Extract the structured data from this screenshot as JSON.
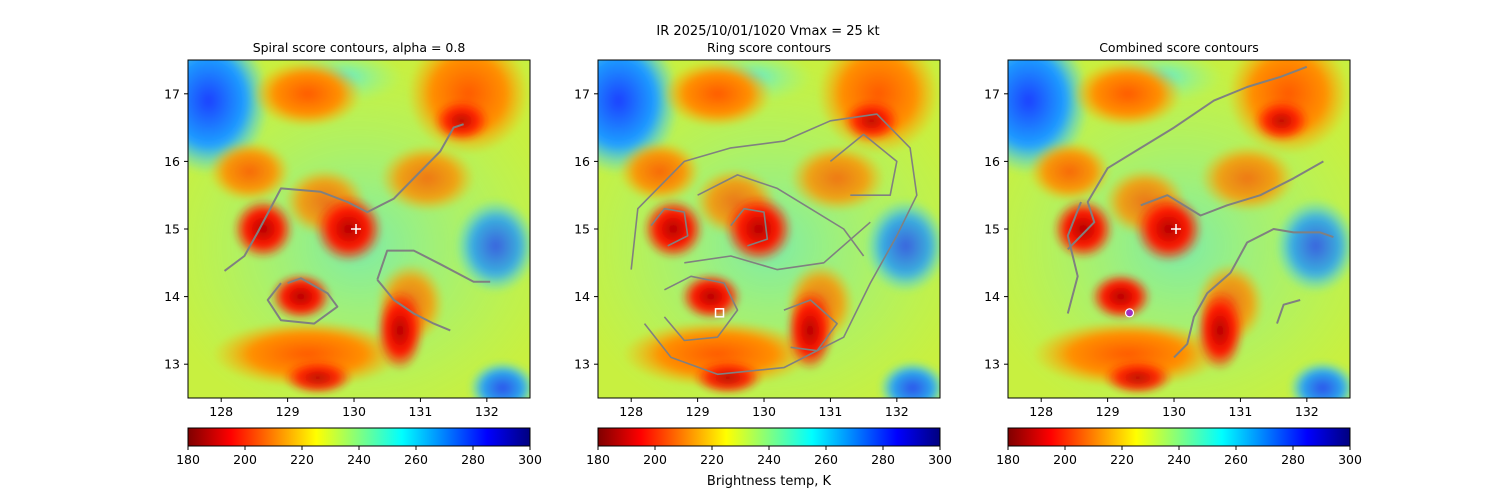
{
  "figure": {
    "suptitle_line": "IR  2025/10/01/1020    Vmax = 25 kt",
    "colorbar_label": "Brightness temp, K"
  },
  "colorscale": {
    "name": "jet_r",
    "range": [
      180,
      300
    ],
    "ticks": [
      180,
      200,
      220,
      240,
      260,
      280,
      300
    ],
    "stops": [
      "#7f0000",
      "#ff0000",
      "#ff8000",
      "#ffff00",
      "#80ff80",
      "#00ffff",
      "#0080ff",
      "#0000ff",
      "#00007f"
    ]
  },
  "contour_color": "#808080",
  "marker_color": "#ffffff",
  "chart_data": [
    {
      "type": "heatmap",
      "title": "Spiral score contours, alpha =  0.8",
      "xlim": [
        127.5,
        132.65
      ],
      "ylim": [
        12.5,
        17.5
      ],
      "xticks": [
        128,
        129,
        130,
        131,
        132
      ],
      "yticks": [
        13,
        14,
        15,
        16,
        17
      ],
      "contours": [
        [
          [
            128.05,
            14.38
          ],
          [
            128.35,
            14.6
          ],
          [
            128.55,
            14.95
          ],
          [
            128.9,
            15.6
          ],
          [
            129.5,
            15.55
          ],
          [
            129.9,
            15.4
          ],
          [
            130.2,
            15.25
          ],
          [
            130.6,
            15.45
          ],
          [
            131.0,
            15.85
          ],
          [
            131.3,
            16.15
          ],
          [
            131.5,
            16.5
          ],
          [
            131.65,
            16.55
          ]
        ],
        [
          [
            129.0,
            14.2
          ],
          [
            129.2,
            14.27
          ],
          [
            129.6,
            14.05
          ],
          [
            129.75,
            13.85
          ],
          [
            129.4,
            13.6
          ],
          [
            128.9,
            13.65
          ],
          [
            128.7,
            13.95
          ],
          [
            128.9,
            14.2
          ]
        ],
        [
          [
            130.35,
            14.25
          ],
          [
            130.5,
            14.68
          ],
          [
            130.9,
            14.68
          ],
          [
            131.3,
            14.48
          ],
          [
            131.8,
            14.22
          ],
          [
            132.05,
            14.22
          ]
        ],
        [
          [
            130.35,
            14.25
          ],
          [
            130.6,
            13.95
          ],
          [
            130.9,
            13.75
          ],
          [
            131.2,
            13.6
          ],
          [
            131.45,
            13.5
          ]
        ]
      ],
      "center_marker": {
        "x": 130.03,
        "y": 15.0,
        "symbol": "+"
      }
    },
    {
      "type": "heatmap",
      "title": "Ring score contours",
      "xlim": [
        127.5,
        132.65
      ],
      "ylim": [
        12.5,
        17.5
      ],
      "xticks": [
        128,
        129,
        130,
        131,
        132
      ],
      "yticks": [
        13,
        14,
        15,
        16,
        17
      ],
      "contours": [
        [
          [
            128.0,
            14.4
          ],
          [
            128.1,
            15.3
          ],
          [
            128.8,
            16.0
          ],
          [
            129.5,
            16.2
          ],
          [
            130.3,
            16.3
          ],
          [
            131.0,
            16.6
          ],
          [
            131.7,
            16.7
          ],
          [
            132.2,
            16.2
          ],
          [
            132.3,
            15.5
          ],
          [
            132.0,
            14.9
          ],
          [
            131.6,
            14.2
          ],
          [
            131.2,
            13.4
          ],
          [
            130.3,
            12.95
          ],
          [
            129.3,
            12.85
          ],
          [
            128.6,
            13.1
          ],
          [
            128.2,
            13.6
          ]
        ],
        [
          [
            128.3,
            15.05
          ],
          [
            128.5,
            15.3
          ],
          [
            128.8,
            15.25
          ],
          [
            128.85,
            14.9
          ],
          [
            128.55,
            14.75
          ]
        ],
        [
          [
            129.5,
            15.05
          ],
          [
            129.7,
            15.3
          ],
          [
            130.0,
            15.25
          ],
          [
            130.05,
            14.85
          ],
          [
            129.75,
            14.75
          ]
        ],
        [
          [
            128.5,
            14.1
          ],
          [
            128.9,
            14.3
          ],
          [
            129.4,
            14.2
          ],
          [
            129.6,
            13.8
          ],
          [
            129.3,
            13.4
          ],
          [
            128.8,
            13.35
          ],
          [
            128.5,
            13.7
          ]
        ],
        [
          [
            130.3,
            13.8
          ],
          [
            130.7,
            13.95
          ],
          [
            131.1,
            13.6
          ],
          [
            130.8,
            13.2
          ],
          [
            130.4,
            13.25
          ]
        ],
        [
          [
            131.0,
            16.0
          ],
          [
            131.5,
            16.4
          ],
          [
            132.0,
            16.0
          ],
          [
            131.9,
            15.5
          ],
          [
            131.3,
            15.5
          ]
        ],
        [
          [
            129.0,
            15.5
          ],
          [
            129.6,
            15.8
          ],
          [
            130.2,
            15.6
          ],
          [
            130.7,
            15.3
          ],
          [
            131.2,
            15.0
          ],
          [
            131.5,
            14.6
          ]
        ],
        [
          [
            128.8,
            14.5
          ],
          [
            129.5,
            14.6
          ],
          [
            130.2,
            14.4
          ],
          [
            130.9,
            14.5
          ],
          [
            131.6,
            15.1
          ]
        ]
      ],
      "center_marker": {
        "x": 129.33,
        "y": 13.76,
        "symbol": "square"
      }
    },
    {
      "type": "heatmap",
      "title": "Combined score contours",
      "xlim": [
        127.5,
        132.65
      ],
      "ylim": [
        12.5,
        17.5
      ],
      "xticks": [
        128,
        129,
        130,
        131,
        132
      ],
      "yticks": [
        13,
        14,
        15,
        16,
        17
      ],
      "contours": [
        [
          [
            128.4,
            14.7
          ],
          [
            128.8,
            15.1
          ],
          [
            128.7,
            15.4
          ],
          [
            129.0,
            15.9
          ],
          [
            129.5,
            16.2
          ],
          [
            130.0,
            16.5
          ],
          [
            130.6,
            16.9
          ],
          [
            131.1,
            17.1
          ],
          [
            131.6,
            17.25
          ],
          [
            132.0,
            17.4
          ]
        ],
        [
          [
            128.4,
            13.75
          ],
          [
            128.55,
            14.3
          ],
          [
            128.4,
            14.9
          ],
          [
            128.6,
            15.4
          ]
        ],
        [
          [
            129.5,
            15.35
          ],
          [
            129.9,
            15.5
          ],
          [
            130.4,
            15.2
          ],
          [
            130.8,
            15.35
          ],
          [
            131.3,
            15.5
          ],
          [
            131.8,
            15.75
          ],
          [
            132.25,
            16.0
          ]
        ],
        [
          [
            130.85,
            14.35
          ],
          [
            131.1,
            14.8
          ],
          [
            131.5,
            15.0
          ],
          [
            131.8,
            14.95
          ],
          [
            132.2,
            14.95
          ],
          [
            132.4,
            14.88
          ]
        ],
        [
          [
            130.85,
            14.35
          ],
          [
            130.5,
            14.05
          ],
          [
            130.3,
            13.7
          ],
          [
            130.2,
            13.3
          ],
          [
            130.0,
            13.1
          ]
        ],
        [
          [
            131.55,
            13.6
          ],
          [
            131.65,
            13.88
          ],
          [
            131.9,
            13.95
          ]
        ]
      ],
      "center_marker": {
        "x": 130.03,
        "y": 15.0,
        "symbol": "+"
      },
      "secondary_marker": {
        "x": 129.33,
        "y": 13.76,
        "symbol": "circle"
      }
    }
  ]
}
